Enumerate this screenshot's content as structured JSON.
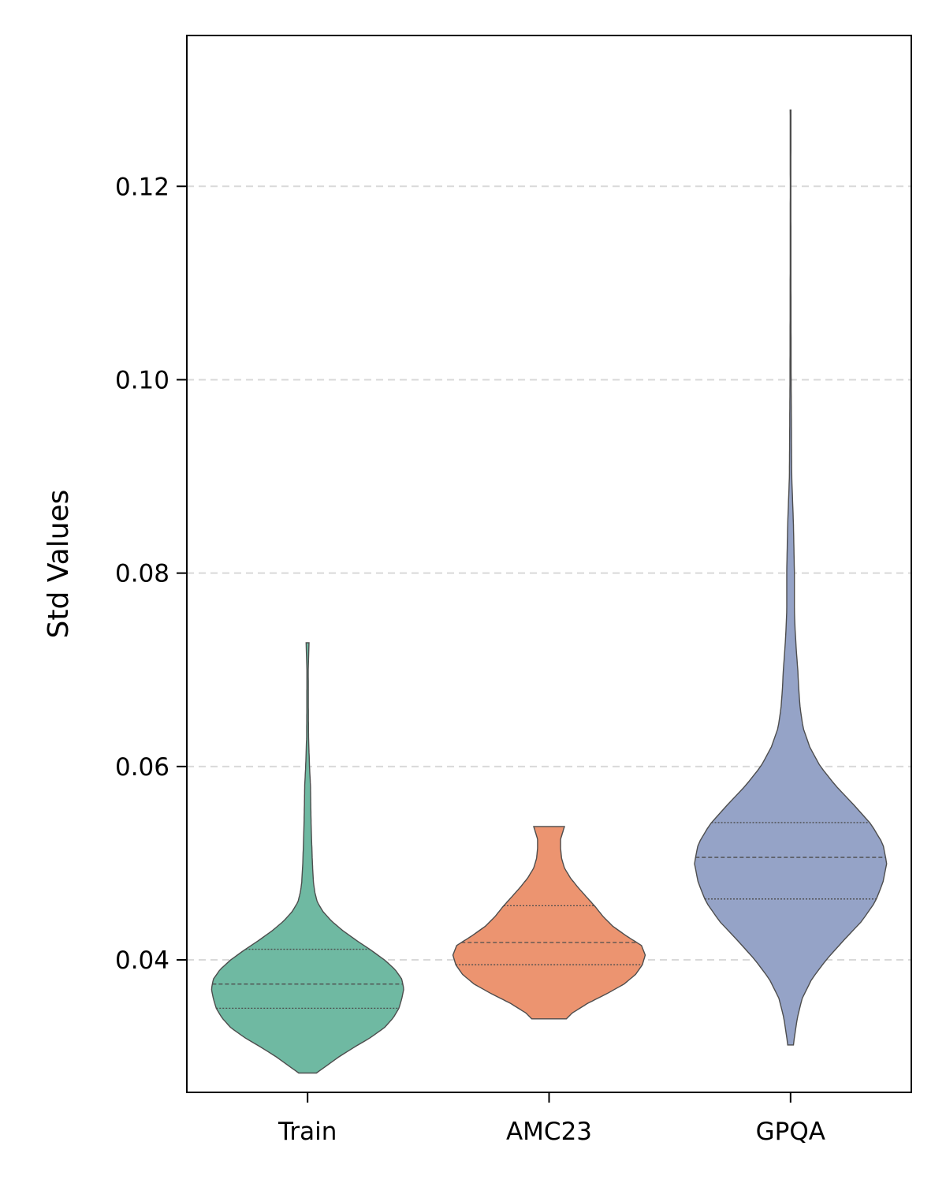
{
  "chart_data": {
    "type": "violin",
    "title": "",
    "xlabel": "",
    "ylabel": "Std Values",
    "ylim": [
      0.0263,
      0.1356
    ],
    "yticks": [
      0.04,
      0.06,
      0.08,
      0.1,
      0.12
    ],
    "ytick_labels": [
      "0.04",
      "0.06",
      "0.08",
      "0.10",
      "0.12"
    ],
    "grid": "horizontal dashed",
    "line_color": "#4d4d4d",
    "grid_color": "#d9d9d9",
    "series": [
      {
        "name": "Train",
        "color": "#6fb9a2",
        "min": 0.0283,
        "max": 0.0728,
        "quartiles": [
          0.035,
          0.0375,
          0.0411
        ],
        "profile": [
          [
            0.0283,
            0.092
          ],
          [
            0.029,
            0.19
          ],
          [
            0.03,
            0.33
          ],
          [
            0.031,
            0.49
          ],
          [
            0.032,
            0.66
          ],
          [
            0.033,
            0.8
          ],
          [
            0.034,
            0.89
          ],
          [
            0.035,
            0.95
          ],
          [
            0.036,
            0.98
          ],
          [
            0.037,
            1.0
          ],
          [
            0.038,
            0.98
          ],
          [
            0.039,
            0.91
          ],
          [
            0.04,
            0.8
          ],
          [
            0.041,
            0.66
          ],
          [
            0.042,
            0.51
          ],
          [
            0.043,
            0.37
          ],
          [
            0.044,
            0.25
          ],
          [
            0.045,
            0.16
          ],
          [
            0.046,
            0.1
          ],
          [
            0.047,
            0.075
          ],
          [
            0.048,
            0.061
          ],
          [
            0.05,
            0.05
          ],
          [
            0.052,
            0.043
          ],
          [
            0.054,
            0.037
          ],
          [
            0.056,
            0.033
          ],
          [
            0.058,
            0.03
          ],
          [
            0.06,
            0.02
          ],
          [
            0.063,
            0.01
          ],
          [
            0.066,
            0.008
          ],
          [
            0.07,
            0.007
          ],
          [
            0.0728,
            0.015
          ]
        ]
      },
      {
        "name": "AMC23",
        "color": "#ec9470",
        "min": 0.0339,
        "max": 0.0538,
        "quartiles": [
          0.0395,
          0.0418,
          0.0456
        ],
        "profile": [
          [
            0.0339,
            0.18
          ],
          [
            0.0345,
            0.24
          ],
          [
            0.0355,
            0.4
          ],
          [
            0.0365,
            0.6
          ],
          [
            0.0375,
            0.78
          ],
          [
            0.0385,
            0.9
          ],
          [
            0.0395,
            0.97
          ],
          [
            0.0405,
            1.0
          ],
          [
            0.0415,
            0.96
          ],
          [
            0.0425,
            0.8
          ],
          [
            0.0435,
            0.66
          ],
          [
            0.0445,
            0.56
          ],
          [
            0.0455,
            0.48
          ],
          [
            0.0465,
            0.39
          ],
          [
            0.0475,
            0.3
          ],
          [
            0.0485,
            0.22
          ],
          [
            0.0495,
            0.16
          ],
          [
            0.0505,
            0.13
          ],
          [
            0.0515,
            0.12
          ],
          [
            0.0525,
            0.12
          ],
          [
            0.0538,
            0.16
          ]
        ]
      },
      {
        "name": "GPQA",
        "color": "#95a3c7",
        "min": 0.0312,
        "max": 0.1279,
        "quartiles": [
          0.0463,
          0.0506,
          0.0542
        ],
        "profile": [
          [
            0.0312,
            0.03
          ],
          [
            0.032,
            0.04
          ],
          [
            0.034,
            0.07
          ],
          [
            0.036,
            0.12
          ],
          [
            0.038,
            0.22
          ],
          [
            0.04,
            0.37
          ],
          [
            0.042,
            0.55
          ],
          [
            0.044,
            0.74
          ],
          [
            0.046,
            0.88
          ],
          [
            0.048,
            0.96
          ],
          [
            0.05,
            1.0
          ],
          [
            0.052,
            0.96
          ],
          [
            0.054,
            0.84
          ],
          [
            0.056,
            0.66
          ],
          [
            0.058,
            0.47
          ],
          [
            0.06,
            0.31
          ],
          [
            0.062,
            0.2
          ],
          [
            0.064,
            0.13
          ],
          [
            0.066,
            0.1
          ],
          [
            0.068,
            0.085
          ],
          [
            0.07,
            0.075
          ],
          [
            0.072,
            0.06
          ],
          [
            0.074,
            0.048
          ],
          [
            0.076,
            0.04
          ],
          [
            0.08,
            0.04
          ],
          [
            0.085,
            0.03
          ],
          [
            0.09,
            0.012
          ],
          [
            0.1,
            0.006
          ],
          [
            0.11,
            0.004
          ],
          [
            0.12,
            0.003
          ],
          [
            0.1279,
            0.004
          ]
        ]
      }
    ]
  }
}
